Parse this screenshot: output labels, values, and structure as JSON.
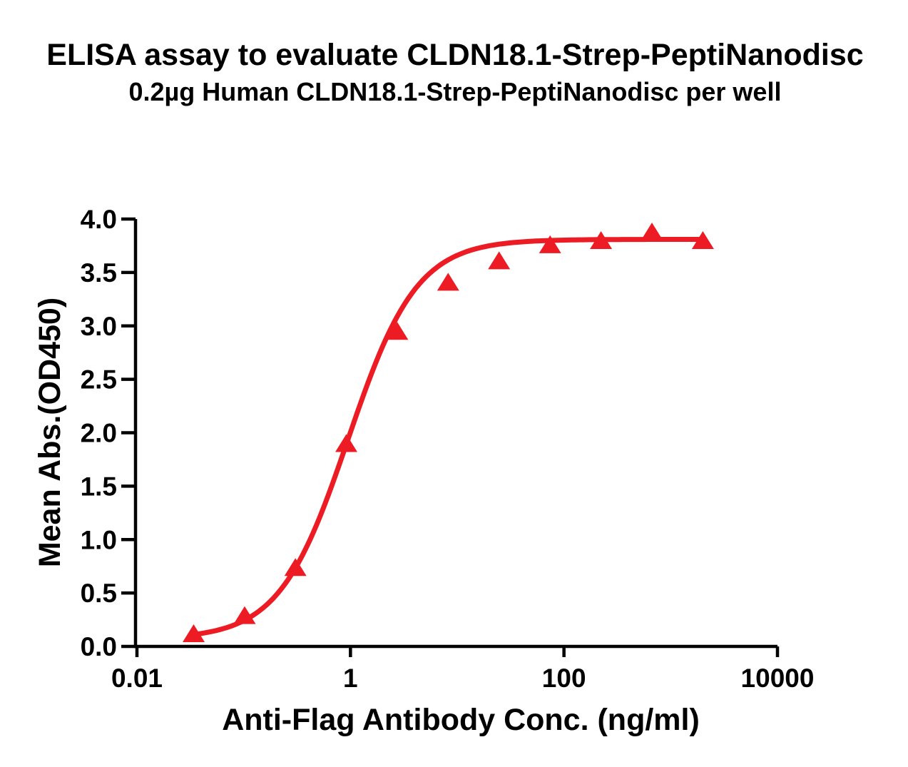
{
  "chart_data": {
    "type": "scatter",
    "title": "ELISA assay to evaluate CLDN18.1-Strep-PeptiNanodisc",
    "subtitle": "0.2µg Human CLDN18.1-Strep-PeptiNanodisc per well",
    "xlabel": "Anti-Flag Antibody Conc. (ng/ml)",
    "ylabel": "Mean Abs.(OD450)",
    "x_scale": "log10",
    "xlim": [
      0.01,
      10000
    ],
    "ylim": [
      0.0,
      4.0
    ],
    "grid": false,
    "legend": "none",
    "x_ticks": {
      "values": [
        0.01,
        1,
        100,
        10000
      ],
      "labels": [
        "0.01",
        "1",
        "100",
        "10000"
      ]
    },
    "y_ticks": {
      "values": [
        0,
        0.5,
        1,
        1.5,
        2,
        2.5,
        3,
        3.5,
        4
      ],
      "labels": [
        "0.0",
        "0.5",
        "1.0",
        "1.5",
        "2.0",
        "2.5",
        "3.0",
        "3.5",
        "4.0"
      ]
    },
    "series": [
      {
        "name": "Human CLDN18.1-Strep-PeptiNanodisc",
        "marker": "triangle-up",
        "color": "#ED1C24",
        "x": [
          0.034,
          0.102,
          0.305,
          0.914,
          2.743,
          8.23,
          24.69,
          74.07,
          222.2,
          666.7,
          2000
        ],
        "y": [
          0.12,
          0.29,
          0.74,
          1.9,
          2.95,
          3.41,
          3.61,
          3.76,
          3.8,
          3.88,
          3.8
        ],
        "fit_curve": {
          "model": "4PL",
          "bottom": 0.07,
          "top": 3.81,
          "ec50": 0.95,
          "hill": 1.35
        }
      }
    ]
  },
  "colors": {
    "accent": "#ED1C24",
    "axis": "#000000",
    "text": "#000000",
    "background": "#FFFFFF"
  }
}
